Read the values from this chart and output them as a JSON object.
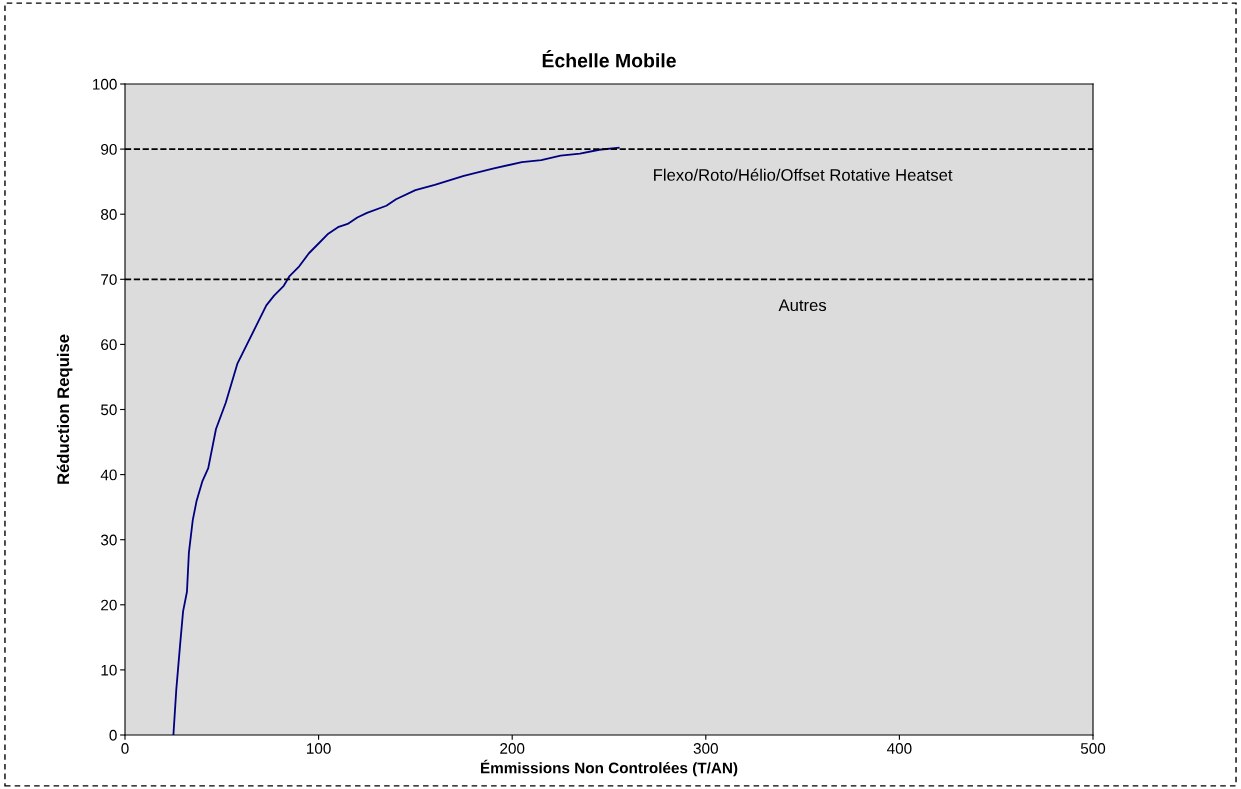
{
  "chart_data": {
    "type": "line",
    "title": "Échelle Mobile",
    "xlabel": "Émmissions Non Controlées (T/AN)",
    "ylabel": "Réduction Requise",
    "series": [
      {
        "color": "#000080",
        "x": [
          25,
          26.5,
          28.5,
          30,
          32,
          33,
          35,
          37,
          40,
          43,
          47,
          52,
          55,
          58,
          63,
          68,
          73,
          77,
          82,
          85,
          90,
          95,
          100,
          105,
          110,
          115,
          120,
          125,
          135,
          140,
          150,
          160,
          175,
          190,
          205,
          215,
          225,
          235,
          245,
          255
        ],
        "values": [
          0,
          7,
          14,
          19,
          22,
          28,
          33,
          36,
          39,
          41,
          47,
          51,
          54,
          57,
          60,
          63,
          66,
          67.5,
          69,
          70.5,
          72,
          74,
          75.5,
          77,
          78,
          78.5,
          79.5,
          80.2,
          81.3,
          82.3,
          83.7,
          84.5,
          85.9,
          87,
          88,
          88.3,
          89,
          89.3,
          89.9,
          90.2
        ]
      }
    ],
    "ref_lines": [
      {
        "axis": "y",
        "value": 90,
        "label": "Flexo/Roto/Hélio/Offset Rotative Heatset",
        "color": "#000000",
        "line_style": "dashed"
      },
      {
        "axis": "y",
        "value": 70,
        "label": "Autres",
        "color": "#000000",
        "line_style": "dashed"
      }
    ],
    "xlim": [
      0,
      500
    ],
    "xticks": [
      0,
      100,
      200,
      300,
      400,
      500
    ],
    "ylim": [
      0,
      100
    ],
    "yticks": [
      0,
      10,
      20,
      30,
      40,
      50,
      60,
      70,
      80,
      90,
      100
    ],
    "grid": false,
    "legend": false,
    "marker": "none",
    "line_style": "solid"
  }
}
